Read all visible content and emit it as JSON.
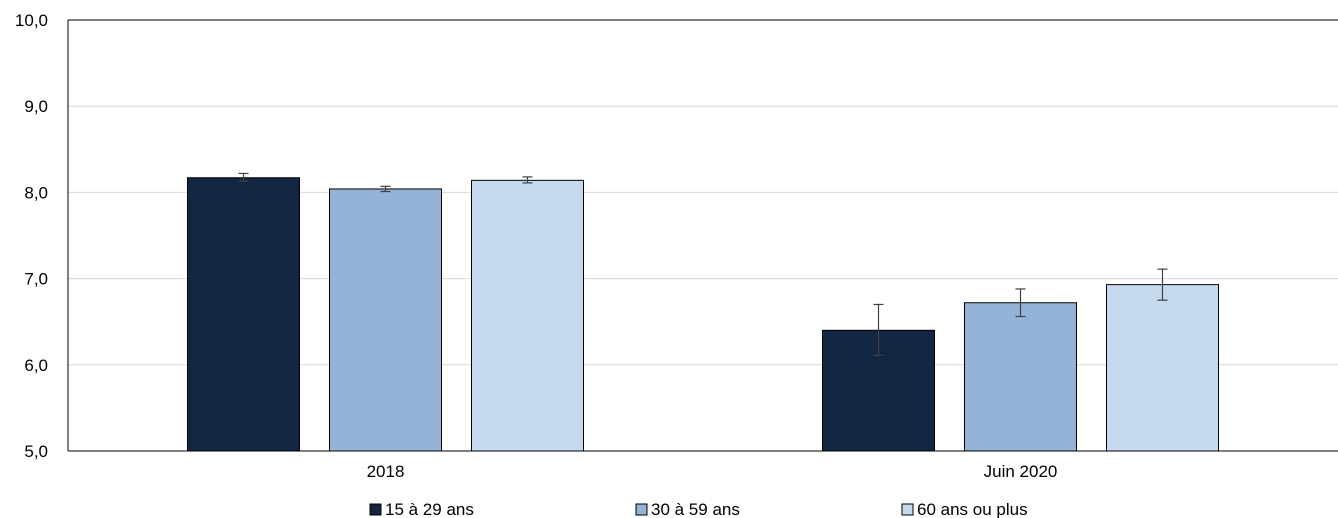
{
  "chart_data": {
    "type": "bar",
    "categories": [
      "2018",
      "Juin 2020"
    ],
    "series": [
      {
        "name": "15 à 29 ans",
        "values": [
          8.17,
          6.4
        ],
        "error_low": [
          8.13,
          6.11
        ],
        "error_high": [
          8.22,
          6.7
        ],
        "color": "#132641"
      },
      {
        "name": "30 à 59 ans",
        "values": [
          8.04,
          6.72
        ],
        "error_low": [
          8.01,
          6.56
        ],
        "error_high": [
          8.07,
          6.88
        ],
        "color": "#94b3d7"
      },
      {
        "name": "60 ans ou plus",
        "values": [
          8.14,
          6.93
        ],
        "error_low": [
          8.11,
          6.75
        ],
        "error_high": [
          8.18,
          7.11
        ],
        "color": "#c6d9ef"
      }
    ],
    "y_ticks": [
      "5,0",
      "6,0",
      "7,0",
      "8,0",
      "9,0",
      "10,0"
    ],
    "ylim": [
      5,
      10
    ],
    "grid": true,
    "legend_position": "bottom",
    "title": "",
    "xlabel": "",
    "ylabel": ""
  }
}
